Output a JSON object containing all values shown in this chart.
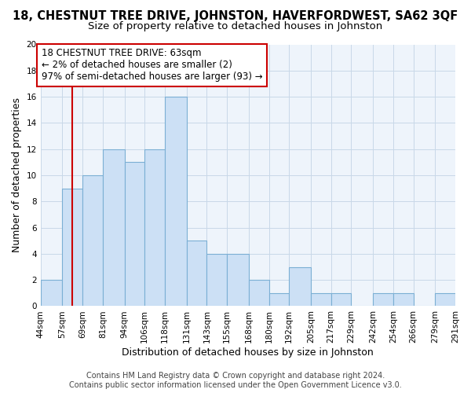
{
  "title": "18, CHESTNUT TREE DRIVE, JOHNSTON, HAVERFORDWEST, SA62 3QF",
  "subtitle": "Size of property relative to detached houses in Johnston",
  "xlabel": "Distribution of detached houses by size in Johnston",
  "ylabel": "Number of detached properties",
  "bin_edges": [
    44,
    57,
    69,
    81,
    94,
    106,
    118,
    131,
    143,
    155,
    168,
    180,
    192,
    205,
    217,
    229,
    242,
    254,
    266,
    279,
    291
  ],
  "bin_labels": [
    "44sqm",
    "57sqm",
    "69sqm",
    "81sqm",
    "94sqm",
    "106sqm",
    "118sqm",
    "131sqm",
    "143sqm",
    "155sqm",
    "168sqm",
    "180sqm",
    "192sqm",
    "205sqm",
    "217sqm",
    "229sqm",
    "242sqm",
    "254sqm",
    "266sqm",
    "279sqm",
    "291sqm"
  ],
  "counts": [
    2,
    9,
    10,
    12,
    11,
    12,
    16,
    5,
    4,
    4,
    2,
    1,
    3,
    1,
    1,
    0,
    1,
    1,
    0,
    1
  ],
  "bar_color": "#cce0f5",
  "bar_edge_color": "#7bafd4",
  "grid_color": "#c8d8e8",
  "property_line_x": 63,
  "property_line_color": "#cc0000",
  "annotation_line1": "18 CHESTNUT TREE DRIVE: 63sqm",
  "annotation_line2": "← 2% of detached houses are smaller (2)",
  "annotation_line3": "97% of semi-detached houses are larger (93) →",
  "annotation_box_color": "#ffffff",
  "annotation_box_edge": "#cc0000",
  "ylim": [
    0,
    20
  ],
  "yticks": [
    0,
    2,
    4,
    6,
    8,
    10,
    12,
    14,
    16,
    18,
    20
  ],
  "footer_line1": "Contains HM Land Registry data © Crown copyright and database right 2024.",
  "footer_line2": "Contains public sector information licensed under the Open Government Licence v3.0.",
  "title_fontsize": 10.5,
  "subtitle_fontsize": 9.5,
  "axis_label_fontsize": 9,
  "tick_fontsize": 7.5,
  "annotation_fontsize": 8.5,
  "footer_fontsize": 7,
  "bg_color": "#eef4fb"
}
